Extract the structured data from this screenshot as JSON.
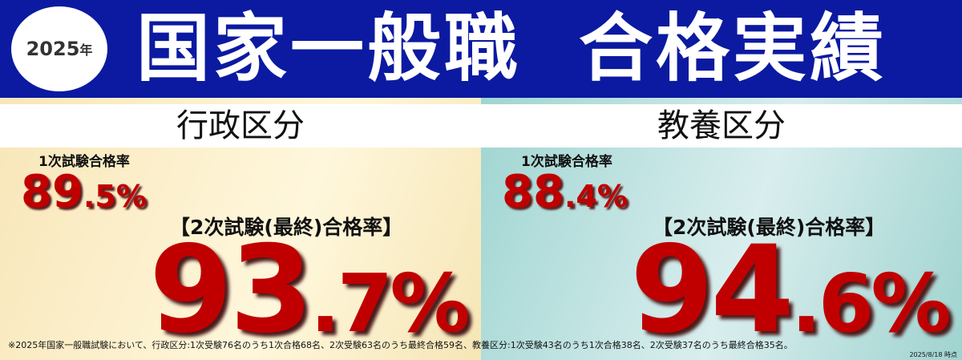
{
  "header": {
    "year_badge_year": "2025",
    "year_badge_suffix": "年",
    "title": "国家一般職  合格実績",
    "bg_color": "#0b1aa0"
  },
  "sections": [
    {
      "name": "行政区分",
      "first_label": "1次試験合格率",
      "first_int": "89",
      "first_dec": ".5%",
      "final_label": "【2次試験(最終)合格率】",
      "final_int": "93",
      "final_dec": ".7%"
    },
    {
      "name": "教養区分",
      "first_label": "1次試験合格率",
      "first_int": "88",
      "first_dec": ".4%",
      "final_label": "【2次試験(最終)合格率】",
      "final_int": "94",
      "final_dec": ".6%"
    }
  ],
  "footnote": "※2025年国家一般職試験において、行政区分:1次受験76名のうち1次合格68名、2次受験63名のうち最終合格59名、教養区分:1次受験43名のうち1次合格38名、2次受験37名のうち最終合格35名。",
  "as_of": "2025/8/18 時点",
  "colors": {
    "accent_red": "#c00000",
    "left_bg": "#fbeec8",
    "right_bg": "#a8d8d4"
  }
}
